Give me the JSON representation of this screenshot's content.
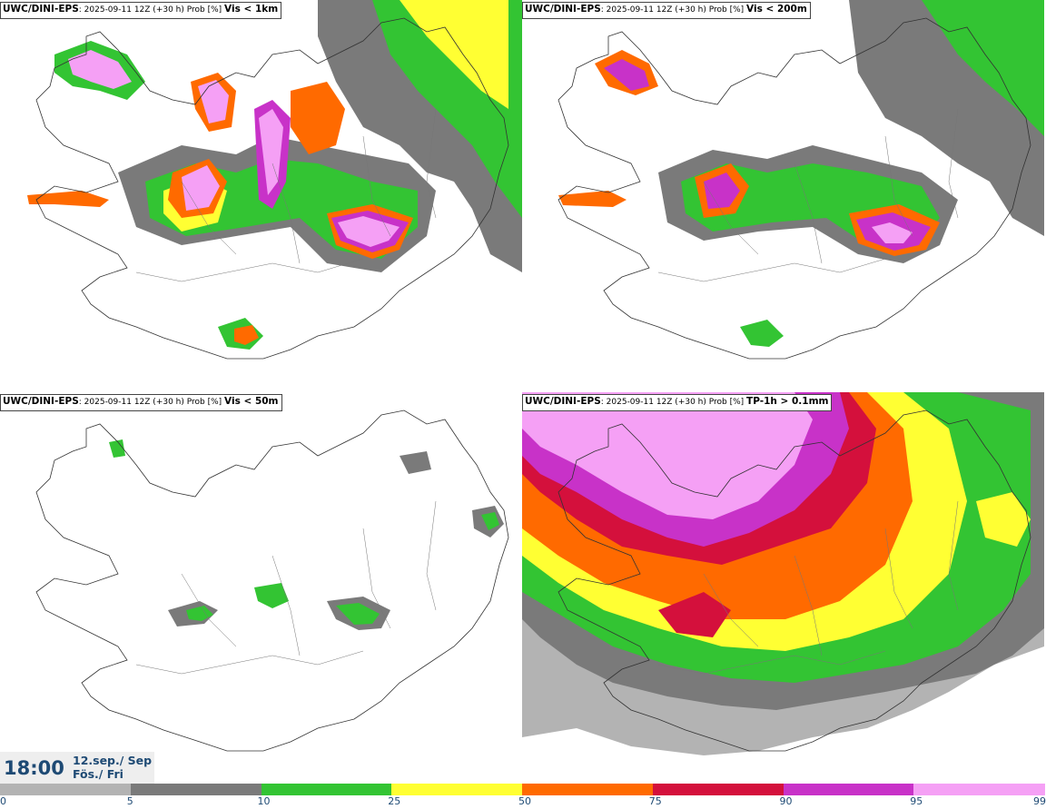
{
  "panels": [
    {
      "id": "p1",
      "title_model": "UWC/DINI-EPS",
      "title_run": ": 2025-09-11 12Z (+30 h) Prob [%]",
      "title_field": "Vis < 1km"
    },
    {
      "id": "p2",
      "title_model": "UWC/DINI-EPS",
      "title_run": ": 2025-09-11 12Z (+30 h) Prob [%]",
      "title_field": "Vis < 200m"
    },
    {
      "id": "p3",
      "title_model": "UWC/DINI-EPS",
      "title_run": ": 2025-09-11 12Z (+30 h) Prob [%]",
      "title_field": "Vis < 50m"
    },
    {
      "id": "p4",
      "title_model": "UWC/DINI-EPS",
      "title_run": ": 2025-09-11 12Z (+30 h) Prob [%]",
      "title_field": "TP-1h > 0.1mm"
    }
  ],
  "valid_time": {
    "time": "18:00",
    "date_line1": "12.sep./ Sep",
    "date_line2": "Fös./ Fri"
  },
  "colorbar": {
    "ticks": [
      "0",
      "5",
      "10",
      "25",
      "50",
      "75",
      "90",
      "95",
      "99"
    ],
    "colors": [
      "#ffffff",
      "#b3b3b3",
      "#7a7a7a",
      "#33c433",
      "#ffff33",
      "#ff6a00",
      "#d4103c",
      "#c832c8",
      "#f5a0f5"
    ]
  }
}
